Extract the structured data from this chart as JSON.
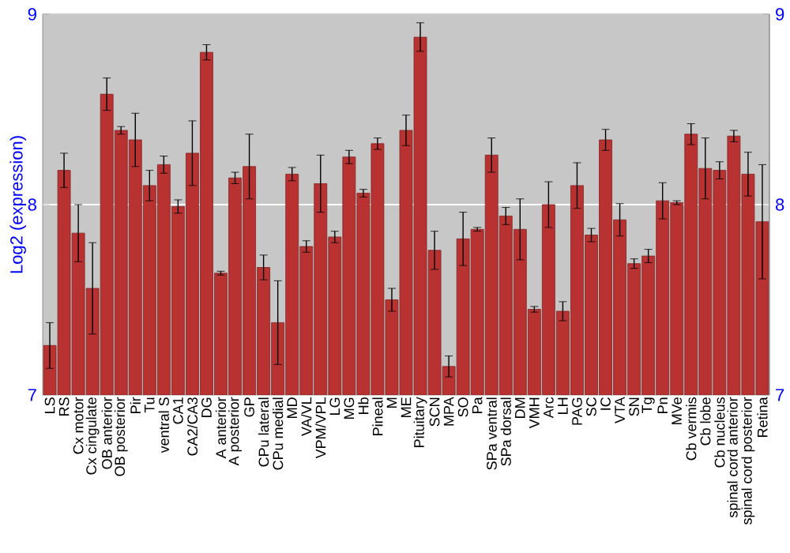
{
  "chart_data": {
    "type": "bar",
    "ylabel": "Log2 (expression)",
    "categories": [
      "LS",
      "RS",
      "Cx motor",
      "Cx cingulate",
      "OB anterior",
      "OB posterior",
      "Pir",
      "Tu",
      "ventral S",
      "CA1",
      "CA2/CA3",
      "DG",
      "A anterior",
      "A posterior",
      "GP",
      "CPu lateral",
      "CPu medial",
      "MD",
      "VA/VL",
      "VPM/VPL",
      "LG",
      "MG",
      "Hb",
      "Pineal",
      "M",
      "ME",
      "Pituitary",
      "SCN",
      "MPA",
      "SO",
      "Pa",
      "SPa ventral",
      "SPa dorsal",
      "DM",
      "VMH",
      "Arc",
      "LH",
      "PAG",
      "SC",
      "IC",
      "VTA",
      "SN",
      "Tg",
      "Pn",
      "MVe",
      "Cb vermis",
      "Cb lobe",
      "Cb nucleus",
      "spinal cord anterior",
      "spinal cord posterior",
      "Retina"
    ],
    "values": [
      7.26,
      8.18,
      7.85,
      7.56,
      8.58,
      8.39,
      8.34,
      8.1,
      8.21,
      7.99,
      8.27,
      8.8,
      7.64,
      8.14,
      8.2,
      7.67,
      7.38,
      8.16,
      7.78,
      8.11,
      7.83,
      8.25,
      8.06,
      8.32,
      7.5,
      8.39,
      8.88,
      7.76,
      7.15,
      7.82,
      7.87,
      8.26,
      7.94,
      7.87,
      7.45,
      8.0,
      7.44,
      8.1,
      7.84,
      8.34,
      7.92,
      7.69,
      7.73,
      8.02,
      8.01,
      8.37,
      8.19,
      8.18,
      8.36,
      8.16,
      7.91
    ],
    "errors": [
      0.12,
      0.09,
      0.15,
      0.24,
      0.085,
      0.02,
      0.14,
      0.08,
      0.045,
      0.035,
      0.17,
      0.04,
      0.01,
      0.03,
      0.17,
      0.065,
      0.22,
      0.035,
      0.03,
      0.15,
      0.03,
      0.035,
      0.02,
      0.03,
      0.06,
      0.08,
      0.075,
      0.1,
      0.055,
      0.14,
      0.01,
      0.09,
      0.045,
      0.16,
      0.015,
      0.12,
      0.05,
      0.12,
      0.035,
      0.055,
      0.085,
      0.025,
      0.035,
      0.095,
      0.01,
      0.055,
      0.16,
      0.045,
      0.03,
      0.115,
      0.3
    ],
    "color": "#b83232",
    "ylim": [
      7,
      9
    ],
    "yticks": [
      7,
      8,
      9
    ],
    "y2lim": [
      7,
      9
    ],
    "y2ticks": [
      7,
      8,
      9
    ],
    "grid": "y"
  }
}
